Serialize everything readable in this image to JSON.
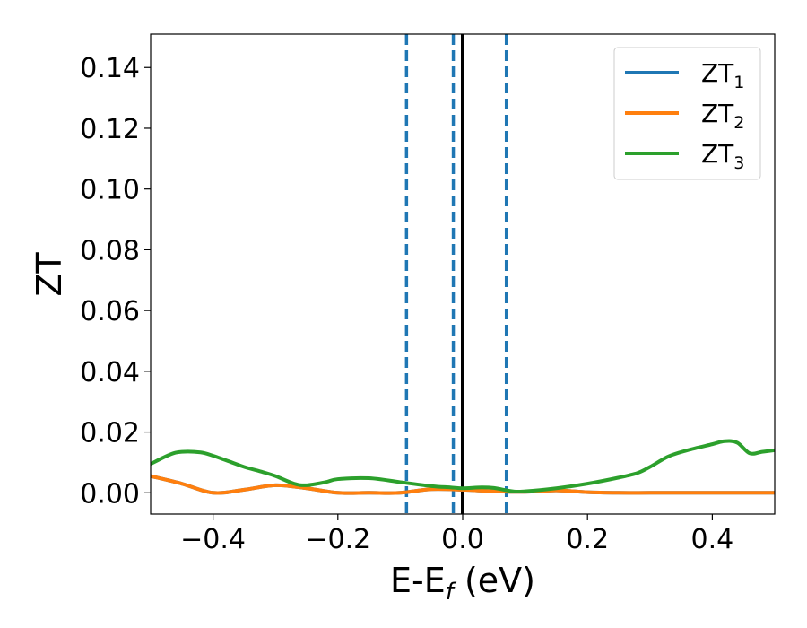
{
  "chart_data": {
    "type": "line",
    "title": "",
    "xlabel": "E-E",
    "xlabel_sub": "f",
    "xlabel_unit": " (eV)",
    "ylabel": "ZT",
    "xlim": [
      -0.5,
      0.5
    ],
    "ylim": [
      -0.007,
      0.151
    ],
    "x_ticks": [
      -0.4,
      -0.2,
      0.0,
      0.2,
      0.4
    ],
    "x_tick_labels": [
      "−0.4",
      "−0.2",
      "0.0",
      "0.2",
      "0.4"
    ],
    "y_ticks": [
      0.0,
      0.02,
      0.04,
      0.06,
      0.08,
      0.1,
      0.12,
      0.14
    ],
    "y_tick_labels": [
      "0.00",
      "0.02",
      "0.04",
      "0.06",
      "0.08",
      "0.10",
      "0.12",
      "0.14"
    ],
    "grid": false,
    "legend_position": "top-right",
    "series": [
      {
        "name": "ZT",
        "name_sub": "1",
        "color": "#1f77b4",
        "x": [
          -0.5,
          -0.45,
          -0.4,
          -0.35,
          -0.3,
          -0.25,
          -0.2,
          -0.15,
          -0.1,
          -0.05,
          0.0,
          0.05,
          0.1,
          0.15,
          0.2,
          0.25,
          0.3,
          0.35,
          0.4,
          0.45,
          0.5
        ],
        "y": [
          0.0055,
          0.003,
          0.0,
          0.001,
          0.0025,
          0.0015,
          0.0,
          0.0,
          0.0,
          0.0012,
          0.001,
          0.0005,
          0.0003,
          0.0008,
          0.0002,
          0.0,
          0.0,
          0.0,
          0.0,
          0.0,
          0.0
        ]
      },
      {
        "name": "ZT",
        "name_sub": "2",
        "color": "#ff7f0e",
        "x": [
          -0.5,
          -0.45,
          -0.4,
          -0.35,
          -0.3,
          -0.25,
          -0.2,
          -0.15,
          -0.1,
          -0.05,
          0.0,
          0.05,
          0.1,
          0.15,
          0.2,
          0.25,
          0.3,
          0.35,
          0.4,
          0.45,
          0.5
        ],
        "y": [
          0.0055,
          0.003,
          0.0,
          0.001,
          0.0025,
          0.0015,
          0.0,
          0.0,
          0.0,
          0.0012,
          0.001,
          0.0005,
          0.0003,
          0.0008,
          0.0002,
          0.0,
          0.0,
          0.0,
          0.0,
          0.0,
          0.0
        ]
      },
      {
        "name": "ZT",
        "name_sub": "3",
        "color": "#2ca02c",
        "x": [
          -0.5,
          -0.47,
          -0.45,
          -0.42,
          -0.4,
          -0.37,
          -0.35,
          -0.32,
          -0.3,
          -0.27,
          -0.25,
          -0.22,
          -0.2,
          -0.15,
          -0.1,
          -0.05,
          -0.02,
          0.0,
          0.03,
          0.05,
          0.08,
          0.1,
          0.15,
          0.2,
          0.25,
          0.28,
          0.3,
          0.33,
          0.36,
          0.4,
          0.42,
          0.44,
          0.46,
          0.48,
          0.5
        ],
        "y": [
          0.0095,
          0.0125,
          0.0135,
          0.0133,
          0.0122,
          0.01,
          0.0085,
          0.0068,
          0.0055,
          0.003,
          0.0025,
          0.0035,
          0.0045,
          0.0048,
          0.0035,
          0.0022,
          0.0018,
          0.0015,
          0.0018,
          0.0016,
          0.0005,
          0.0005,
          0.0015,
          0.003,
          0.005,
          0.0065,
          0.0085,
          0.012,
          0.014,
          0.016,
          0.017,
          0.0165,
          0.013,
          0.0135,
          0.014
        ]
      }
    ],
    "vertical_lines": [
      {
        "x": -0.09,
        "style": "dashed",
        "color": "#1f77b4"
      },
      {
        "x": -0.015,
        "style": "dashed",
        "color": "#1f77b4"
      },
      {
        "x": 0.0,
        "style": "solid",
        "color": "#000000"
      },
      {
        "x": 0.07,
        "style": "dashed",
        "color": "#1f77b4"
      }
    ]
  }
}
